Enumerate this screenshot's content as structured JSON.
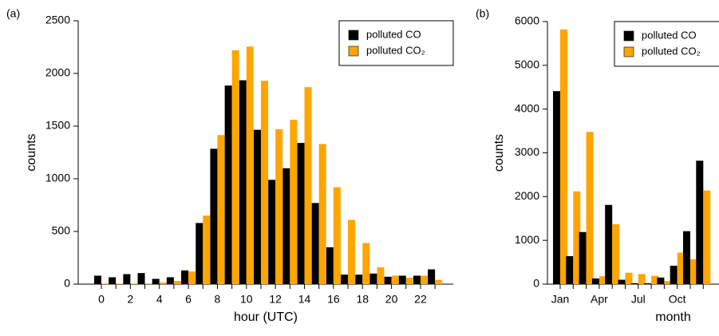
{
  "chart_data": [
    {
      "type": "bar",
      "panel_label": "(a)",
      "x_label": "hour (UTC)",
      "y_label": "counts",
      "categories": [
        "0",
        null,
        "2",
        null,
        "4",
        null,
        "6",
        null,
        "8",
        null,
        "10",
        null,
        "12",
        null,
        "14",
        null,
        "16",
        null,
        "18",
        null,
        "20",
        null,
        "22",
        null
      ],
      "series": [
        {
          "name": "polluted CO",
          "color": "#000000",
          "values": [
            80,
            65,
            95,
            105,
            50,
            65,
            130,
            580,
            1285,
            1885,
            1935,
            1465,
            990,
            1100,
            1340,
            770,
            350,
            90,
            90,
            100,
            70,
            80,
            80,
            140
          ]
        },
        {
          "name": "polluted CO₂",
          "color": "#ffa500",
          "values": [
            5,
            5,
            5,
            5,
            15,
            30,
            120,
            650,
            1415,
            2220,
            2255,
            1930,
            1470,
            1560,
            1870,
            1330,
            920,
            610,
            390,
            160,
            80,
            60,
            80,
            40
          ]
        }
      ],
      "ylim": [
        0,
        2500
      ],
      "yticks": [
        0,
        500,
        1000,
        1500,
        2000,
        2500
      ],
      "legend": "top-right"
    },
    {
      "type": "bar",
      "panel_label": "(b)",
      "x_label": "month",
      "y_label": "counts",
      "categories": [
        "Jan",
        null,
        null,
        "Apr",
        null,
        null,
        "Jul",
        null,
        null,
        "Oct",
        null,
        null
      ],
      "series": [
        {
          "name": "polluted CO",
          "color": "#000000",
          "values": [
            4410,
            640,
            1190,
            130,
            1810,
            100,
            20,
            20,
            150,
            420,
            1210,
            2820
          ]
        },
        {
          "name": "polluted CO₂",
          "color": "#ffa500",
          "values": [
            5820,
            2120,
            3480,
            180,
            1370,
            260,
            230,
            190,
            70,
            720,
            570,
            2140
          ]
        }
      ],
      "ylim": [
        0,
        6000
      ],
      "yticks": [
        0,
        1000,
        2000,
        3000,
        4000,
        5000,
        6000
      ],
      "legend": "top-right"
    }
  ]
}
